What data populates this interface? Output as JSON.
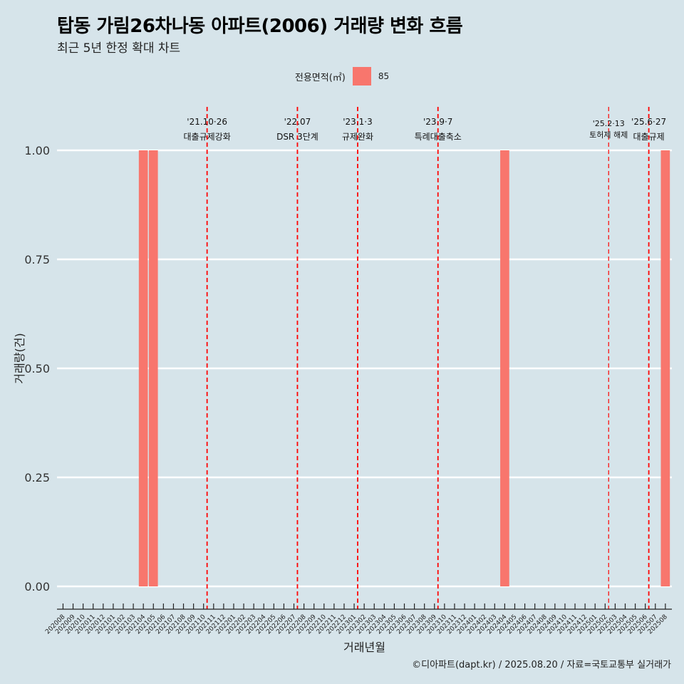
{
  "title": "탑동 가림26차나동 아파트(2006) 거래량 변화 흐름",
  "subtitle": "최근 5년 한정 확대 차트",
  "caption": "©디아파트(dapt.kr) / 2025.08.20 / 자료=국토교통부 실거래가",
  "legend": {
    "title": "전용면적(㎡)",
    "item": "85",
    "color": "#f8766d"
  },
  "colors": {
    "background": "#d6e4ea",
    "bar": "#f8766d",
    "event_line": "#ff0000",
    "grid": "#ffffff"
  },
  "chart_data": {
    "type": "bar",
    "title": "탑동 가림26차나동 아파트(2006) 거래량 변화 흐름",
    "xlabel": "거래년월",
    "ylabel": "거래량(건)",
    "ylim": [
      0,
      1
    ],
    "yticks": [
      "0.00",
      "0.25",
      "0.50",
      "0.75",
      "1.00"
    ],
    "ytick_values": [
      0,
      0.25,
      0.5,
      0.75,
      1.0
    ],
    "categories": [
      "202008",
      "202009",
      "202010",
      "202011",
      "202012",
      "202101",
      "202102",
      "202103",
      "202104",
      "202105",
      "202106",
      "202107",
      "202108",
      "202109",
      "202110",
      "202111",
      "202112",
      "202201",
      "202202",
      "202203",
      "202204",
      "202205",
      "202206",
      "202207",
      "202208",
      "202209",
      "202210",
      "202211",
      "202212",
      "202301",
      "202302",
      "202303",
      "202304",
      "202305",
      "202306",
      "202307",
      "202308",
      "202309",
      "202310",
      "202311",
      "202312",
      "202401",
      "202402",
      "202403",
      "202404",
      "202405",
      "202406",
      "202407",
      "202408",
      "202409",
      "202410",
      "202411",
      "202412",
      "202501",
      "202502",
      "202503",
      "202504",
      "202505",
      "202506",
      "202507",
      "202508"
    ],
    "series": [
      {
        "name": "85",
        "values": [
          0,
          0,
          0,
          0,
          0,
          0,
          0,
          0,
          1,
          1,
          0,
          0,
          0,
          0,
          0,
          0,
          0,
          0,
          0,
          0,
          0,
          0,
          0,
          0,
          0,
          0,
          0,
          0,
          0,
          0,
          0,
          0,
          0,
          0,
          0,
          0,
          0,
          0,
          0,
          0,
          0,
          0,
          0,
          0,
          1,
          0,
          0,
          0,
          0,
          0,
          0,
          0,
          0,
          0,
          0,
          0,
          0,
          0,
          0,
          0,
          1
        ]
      }
    ],
    "events": [
      {
        "date": "'21.10·26",
        "label": "대출규제강화",
        "x": 14.35,
        "style": "bold"
      },
      {
        "date": "'22.07",
        "label": "DSR 3단계",
        "x": 23.35,
        "style": "bold"
      },
      {
        "date": "'23.1·3",
        "label": "규제완화",
        "x": 29.35,
        "style": "bold"
      },
      {
        "date": "'23.9·7",
        "label": "특례대출축소",
        "x": 37.35,
        "style": "bold"
      },
      {
        "date": "'25.2·13",
        "label": "토허제 해제",
        "x": 54.35,
        "style": "thin"
      },
      {
        "date": "'25.6·27",
        "label": "대출규제",
        "x": 58.35,
        "style": "bold"
      }
    ]
  }
}
